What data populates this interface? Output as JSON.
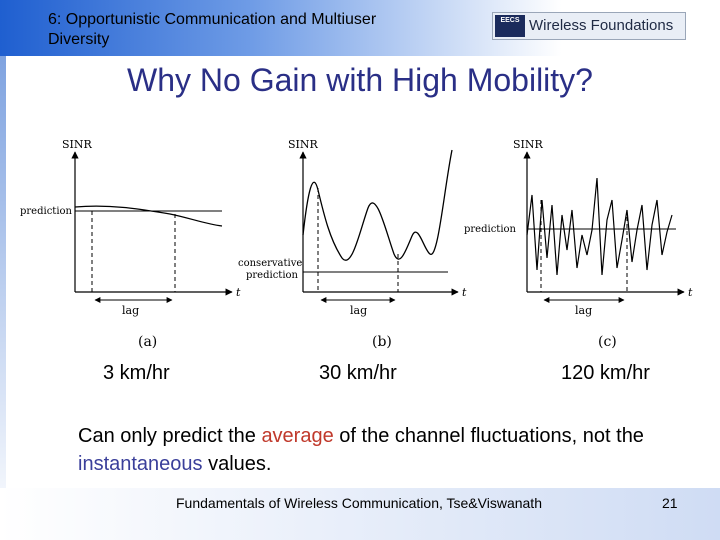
{
  "header": {
    "title_line1": "6: Opportunistic Communication and Multiuser",
    "title_line2": "Diversity",
    "logo_badge": "EECS",
    "logo_text": "Wireless Foundations"
  },
  "slide": {
    "title": "Why No Gain with High Mobility?"
  },
  "figure": {
    "panel_a": {
      "y_label": "SINR",
      "prediction_label": "prediction",
      "x_label": "t",
      "lag_label": "lag",
      "caption": "(a)"
    },
    "panel_b": {
      "y_label": "SINR",
      "prediction_label_1": "conservative",
      "prediction_label_2": "prediction",
      "x_label": "t",
      "lag_label": "lag",
      "caption": "(b)"
    },
    "panel_c": {
      "y_label": "SINR",
      "prediction_label": "prediction",
      "x_label": "t",
      "lag_label": "lag",
      "caption": "(c)"
    }
  },
  "speeds": [
    "3 km/hr",
    "30 km/hr",
    "120 km/hr"
  ],
  "body": {
    "part1": "Can only predict the ",
    "highlight1": "average",
    "part2": " of the channel fluctuations, not the ",
    "highlight2": "instantaneous",
    "part3": " values."
  },
  "footer": {
    "text": "Fundamentals of Wireless Communication, Tse&Viswanath",
    "page": "21"
  },
  "colors": {
    "title": "#2a2f86",
    "highlight_average": "#c0392b",
    "highlight_instantaneous": "#3a3f9a",
    "header_blue": "#1f5fd0"
  }
}
